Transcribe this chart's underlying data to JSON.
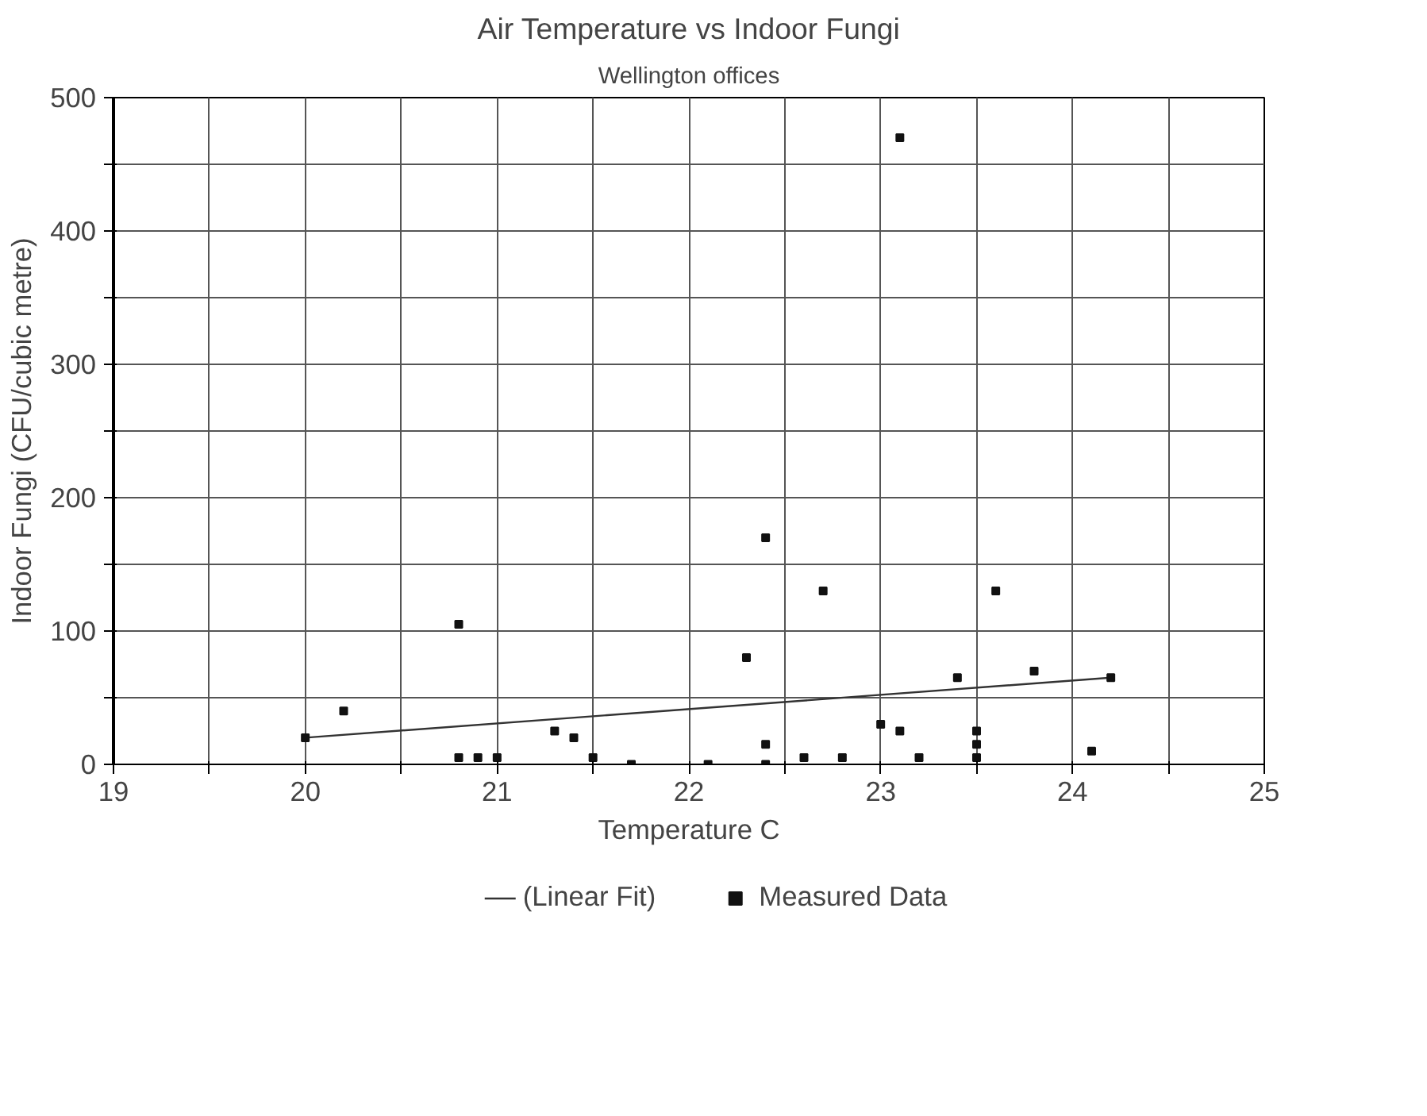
{
  "chart_data": {
    "type": "scatter",
    "title": "Air Temperature vs Indoor Fungi",
    "subtitle": "Wellington offices",
    "xlabel": "Temperature C",
    "ylabel": "Indoor Fungi (CFU/cubic metre)",
    "xlim": [
      19,
      25
    ],
    "ylim": [
      0,
      500
    ],
    "xticks": [
      19,
      {
        "value": 19.5,
        "label": null
      },
      20,
      {
        "value": 20.5,
        "label": null
      },
      21,
      {
        "value": 21.5,
        "label": null
      },
      22,
      {
        "value": 22.5,
        "label": null
      },
      23,
      {
        "value": 23.5,
        "label": null
      },
      24,
      {
        "value": 24.5,
        "label": null
      },
      25
    ],
    "yticks": [
      0,
      {
        "value": 50,
        "label": null
      },
      100,
      {
        "value": 150,
        "label": null
      },
      200,
      {
        "value": 250,
        "label": null
      },
      300,
      {
        "value": 350,
        "label": null
      },
      400,
      {
        "value": 450,
        "label": null
      },
      500
    ],
    "grid": true,
    "legend": "bottom",
    "series": [
      {
        "name": "(Linear Fit)",
        "type": "line",
        "color": "#333333",
        "x": [
          20.0,
          24.2
        ],
        "values": [
          20,
          65
        ]
      },
      {
        "name": "Measured Data",
        "marker": "square",
        "color": "#111111",
        "x": [
          20.0,
          20.2,
          20.8,
          20.8,
          20.9,
          21.0,
          21.3,
          21.4,
          21.5,
          21.7,
          22.1,
          22.3,
          22.4,
          22.4,
          22.4,
          22.6,
          22.7,
          22.8,
          23.0,
          23.1,
          23.1,
          23.2,
          23.4,
          23.5,
          23.5,
          23.5,
          23.6,
          23.8,
          24.1,
          24.2
        ],
        "values": [
          20,
          40,
          105,
          5,
          5,
          5,
          25,
          20,
          5,
          0,
          0,
          80,
          170,
          15,
          0,
          5,
          130,
          5,
          30,
          470,
          25,
          5,
          65,
          25,
          15,
          5,
          130,
          70,
          10,
          65
        ]
      }
    ]
  }
}
